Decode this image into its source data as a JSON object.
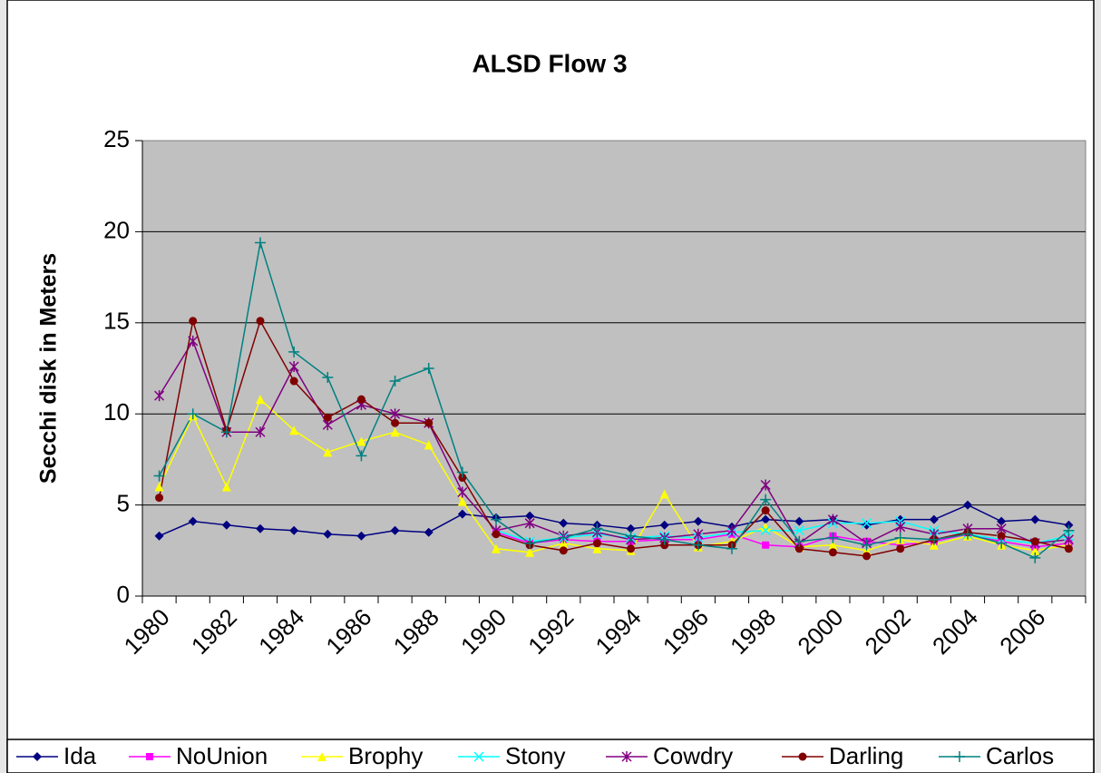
{
  "chart_data": {
    "type": "line",
    "title": "ALSD Flow 3",
    "y_label": "Secchi disk in Meters",
    "categories": [
      "1980",
      null,
      "1982",
      null,
      "1984",
      null,
      "1986",
      null,
      "1988",
      null,
      "1990",
      null,
      "1992",
      null,
      "1994",
      null,
      "1996",
      null,
      "1998",
      null,
      "2000",
      null,
      "2002",
      null,
      "2004",
      null,
      "2006",
      null
    ],
    "ylim": [
      0,
      25
    ],
    "yticks": [
      0,
      5,
      10,
      15,
      20,
      25
    ],
    "grid": true,
    "legend": "bottom",
    "series": [
      {
        "name": "Ida",
        "color": "#000080",
        "marker": "diamond",
        "values": [
          3.3,
          4.1,
          3.9,
          3.7,
          3.6,
          3.4,
          3.3,
          3.6,
          3.5,
          4.5,
          4.3,
          4.4,
          4.0,
          3.9,
          3.7,
          3.9,
          4.1,
          3.8,
          4.2,
          4.1,
          4.2,
          3.9,
          4.2,
          4.2,
          5.0,
          4.1,
          4.2,
          3.9
        ]
      },
      {
        "name": "NoUnion",
        "color": "#ff00ff",
        "marker": "square",
        "values": [
          null,
          null,
          null,
          null,
          null,
          null,
          null,
          null,
          null,
          null,
          3.5,
          2.9,
          3.1,
          3.0,
          3.0,
          3.1,
          3.1,
          3.4,
          2.8,
          2.7,
          3.3,
          3.0,
          2.8,
          3.0,
          3.4,
          3.0,
          2.7,
          2.9
        ]
      },
      {
        "name": "Brophy",
        "color": "#ffff00",
        "marker": "triangle",
        "values": [
          6.0,
          9.9,
          6.0,
          10.8,
          9.1,
          7.9,
          8.5,
          9.0,
          8.3,
          5.2,
          2.6,
          2.4,
          2.9,
          2.6,
          2.5,
          5.6,
          2.7,
          3.0,
          3.8,
          2.7,
          2.8,
          2.5,
          3.1,
          2.8,
          3.3,
          2.8,
          2.5,
          2.8
        ]
      },
      {
        "name": "Stony",
        "color": "#00ffff",
        "marker": "x",
        "values": [
          null,
          null,
          null,
          null,
          null,
          null,
          null,
          null,
          null,
          null,
          3.6,
          3.0,
          3.2,
          3.4,
          3.2,
          3.3,
          3.2,
          3.5,
          3.6,
          3.6,
          4.0,
          4.0,
          4.1,
          3.6,
          3.4,
          3.1,
          2.9,
          3.3
        ]
      },
      {
        "name": "Cowdry",
        "color": "#800080",
        "marker": "asterisk",
        "values": [
          11.0,
          14.0,
          9.0,
          9.0,
          12.6,
          9.4,
          10.5,
          10.0,
          9.5,
          5.7,
          3.6,
          4.0,
          3.3,
          3.5,
          3.1,
          3.2,
          3.4,
          3.6,
          6.1,
          2.9,
          4.2,
          2.9,
          3.8,
          3.4,
          3.7,
          3.7,
          2.9,
          3.1
        ]
      },
      {
        "name": "Darling",
        "color": "#800000",
        "marker": "circle",
        "values": [
          5.4,
          15.1,
          9.1,
          15.1,
          11.8,
          9.8,
          10.8,
          9.5,
          9.5,
          6.5,
          3.4,
          2.8,
          2.5,
          2.9,
          2.6,
          2.8,
          2.8,
          2.8,
          4.7,
          2.6,
          2.4,
          2.2,
          2.6,
          3.1,
          3.5,
          3.3,
          3.0,
          2.6
        ]
      },
      {
        "name": "Carlos",
        "color": "#008080",
        "marker": "plus",
        "values": [
          6.6,
          10.0,
          9.0,
          19.4,
          13.4,
          12.0,
          7.7,
          11.8,
          12.5,
          6.8,
          4.2,
          2.9,
          3.2,
          3.7,
          3.3,
          3.1,
          2.8,
          2.6,
          5.3,
          3.0,
          3.2,
          2.8,
          3.2,
          3.1,
          3.4,
          2.9,
          2.1,
          3.6
        ]
      }
    ]
  }
}
